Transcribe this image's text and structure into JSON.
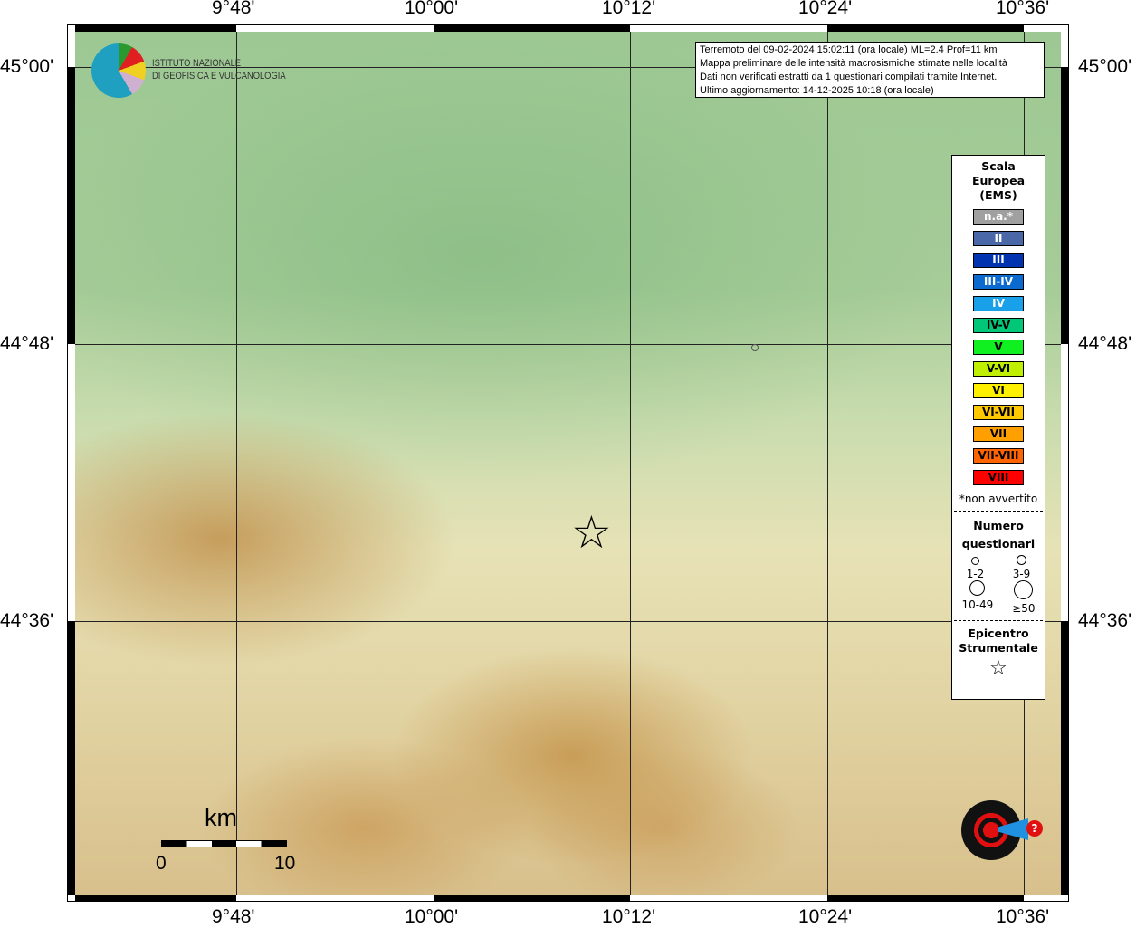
{
  "map": {
    "lon_labels": [
      "9°48'",
      "10°00'",
      "10°12'",
      "10°24'",
      "10°36'"
    ],
    "lat_labels": [
      "45°00'",
      "44°48'",
      "44°36'"
    ],
    "info_lines": [
      "Terremoto del 09-02-2024 15:02:11 (ora locale) ML=2.4 Prof=11 km",
      "Mappa preliminare delle intensità macrosismiche stimate nelle località",
      "Dati non verificati estratti da 1 questionari compilati tramite Internet.",
      "Ultimo aggiornamento: 14-12-2025 10:18 (ora locale)"
    ],
    "logo": {
      "line1": "ISTITUTO NAZIONALE",
      "line2": "DI GEOFISICA E VULCANOLOGIA"
    },
    "scale": {
      "unit": "km",
      "start": "0",
      "end": "10"
    },
    "hsit_logo": "www.haisentitoilterremoto.it",
    "epicenter_icon": "star-icon"
  },
  "legend": {
    "title": [
      "Scala",
      "Europea",
      "(EMS)"
    ],
    "items": [
      {
        "label": "n.a.*",
        "color": "#a0a0a0",
        "text": "#fff"
      },
      {
        "label": "II",
        "color": "#4a68a8",
        "text": "#fff"
      },
      {
        "label": "III",
        "color": "#0033b0",
        "text": "#fff"
      },
      {
        "label": "III-IV",
        "color": "#0a6ad0",
        "text": "#fff"
      },
      {
        "label": "IV",
        "color": "#18a0e8",
        "text": "#fff"
      },
      {
        "label": "IV-V",
        "color": "#00c878",
        "text": "#000"
      },
      {
        "label": "V",
        "color": "#10f020",
        "text": "#000"
      },
      {
        "label": "V-VI",
        "color": "#c0f000",
        "text": "#000"
      },
      {
        "label": "VI",
        "color": "#fff000",
        "text": "#000"
      },
      {
        "label": "VI-VII",
        "color": "#ffc800",
        "text": "#000"
      },
      {
        "label": "VII",
        "color": "#ffa000",
        "text": "#000"
      },
      {
        "label": "VII-VIII",
        "color": "#ff6400",
        "text": "#000"
      },
      {
        "label": "VIII",
        "color": "#ff0000",
        "text": "#000"
      }
    ],
    "note": "*non avvertito",
    "count_title": [
      "Numero",
      "questionari"
    ],
    "counts": [
      "1-2",
      "3-9",
      "10-49",
      "≥50"
    ],
    "epicenter_title": [
      "Epicentro",
      "Strumentale"
    ]
  }
}
